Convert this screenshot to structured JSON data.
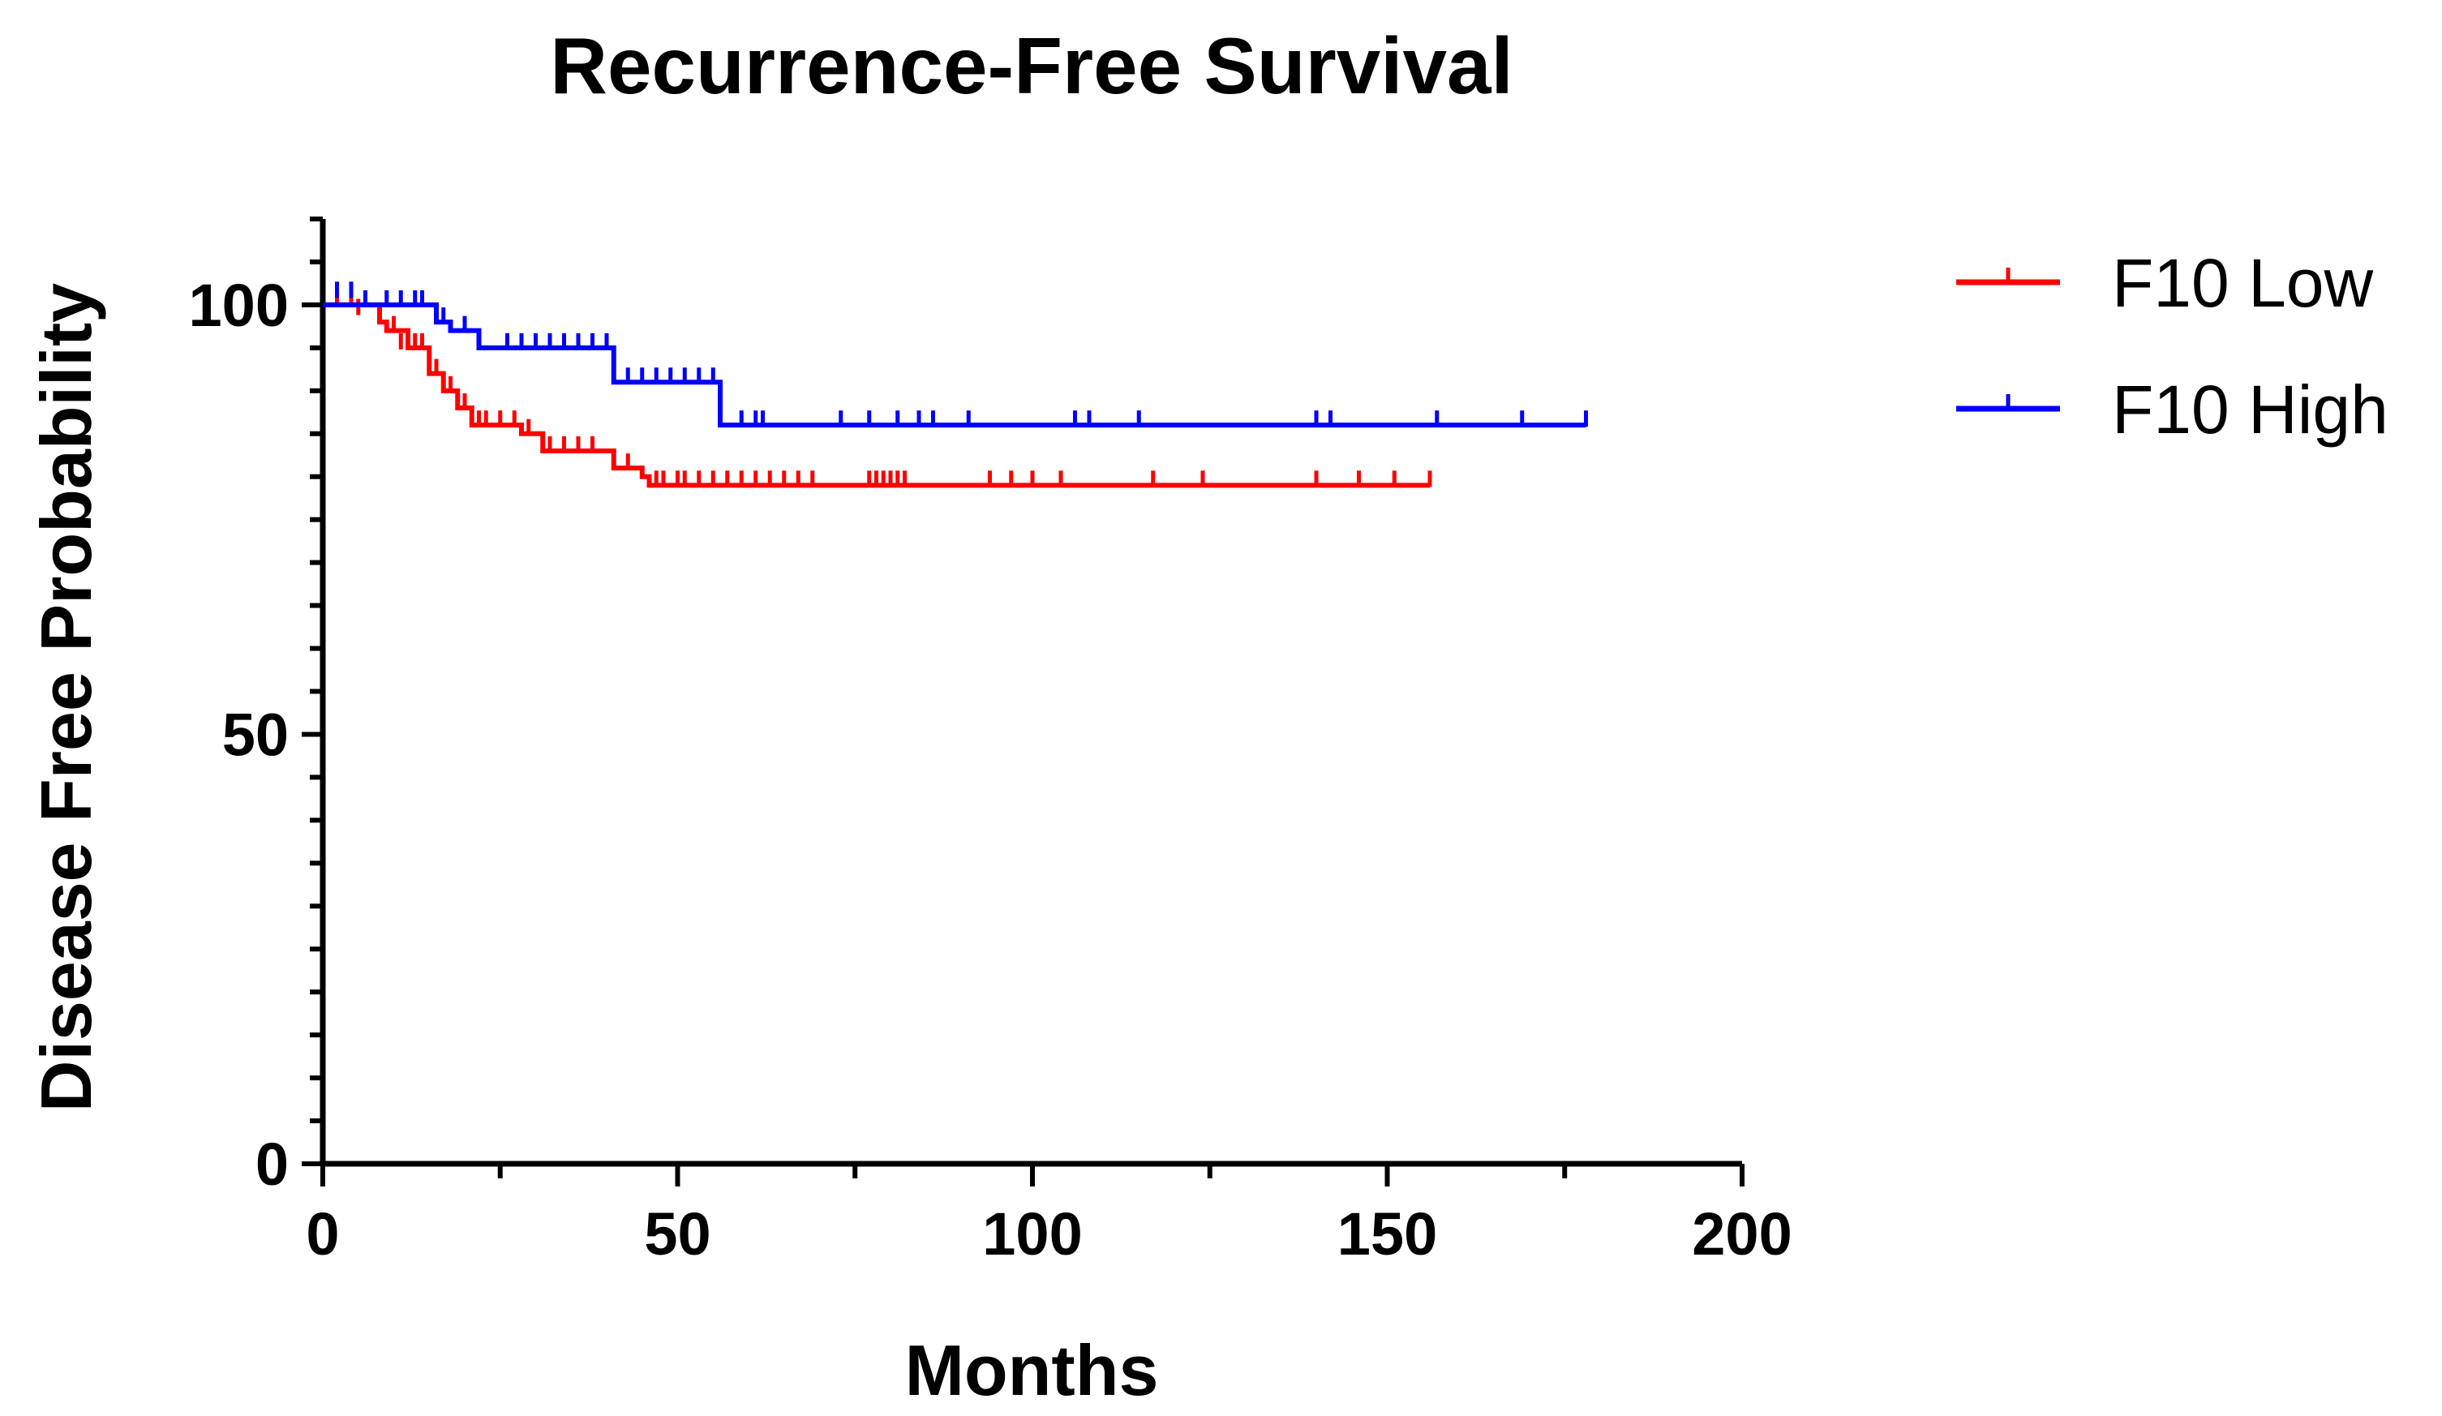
{
  "colors": {
    "low": "#ff0000",
    "high": "#0000ff",
    "axis": "#000000"
  },
  "chart_data": {
    "type": "line",
    "step": true,
    "title": "Recurrence-Free Survival",
    "xlabel": "Months",
    "ylabel": "Disease Free Probability",
    "xlim": [
      0,
      200
    ],
    "ylim": [
      0,
      110
    ],
    "xticks": [
      "0",
      "50",
      "100",
      "150",
      "200"
    ],
    "xtick_values": [
      0,
      50,
      100,
      150,
      200
    ],
    "yticks": [
      "0",
      "50",
      "100"
    ],
    "ytick_values": [
      0,
      50,
      100
    ],
    "grid": false,
    "legend_position": "top-right",
    "series": [
      {
        "name": "F10 Low",
        "color": "#ff0000",
        "steps": [
          [
            0,
            100
          ],
          [
            8,
            98
          ],
          [
            9,
            97
          ],
          [
            12,
            95
          ],
          [
            15,
            92
          ],
          [
            17,
            90
          ],
          [
            19,
            88
          ],
          [
            21,
            86
          ],
          [
            28,
            85
          ],
          [
            31,
            83
          ],
          [
            41,
            81
          ],
          [
            45,
            80
          ],
          [
            46,
            79
          ],
          [
            156,
            79
          ]
        ],
        "censored": [
          [
            2,
            100
          ],
          [
            4,
            100
          ],
          [
            5,
            99
          ],
          [
            10,
            97
          ],
          [
            11,
            95
          ],
          [
            13,
            95
          ],
          [
            14,
            95
          ],
          [
            16,
            92
          ],
          [
            18,
            90
          ],
          [
            20,
            88
          ],
          [
            22,
            86
          ],
          [
            23,
            86
          ],
          [
            25,
            86
          ],
          [
            27,
            86
          ],
          [
            29,
            85
          ],
          [
            32,
            83
          ],
          [
            34,
            83
          ],
          [
            36,
            83
          ],
          [
            38,
            83
          ],
          [
            43,
            81
          ],
          [
            47,
            79
          ],
          [
            48,
            79
          ],
          [
            50,
            79
          ],
          [
            51,
            79
          ],
          [
            53,
            79
          ],
          [
            55,
            79
          ],
          [
            57,
            79
          ],
          [
            59,
            79
          ],
          [
            61,
            79
          ],
          [
            63,
            79
          ],
          [
            65,
            79
          ],
          [
            67,
            79
          ],
          [
            69,
            79
          ],
          [
            77,
            79
          ],
          [
            78,
            79
          ],
          [
            79,
            79
          ],
          [
            80,
            79
          ],
          [
            81,
            79
          ],
          [
            82,
            79
          ],
          [
            94,
            79
          ],
          [
            97,
            79
          ],
          [
            100,
            79
          ],
          [
            104,
            79
          ],
          [
            117,
            79
          ],
          [
            124,
            79
          ],
          [
            140,
            79
          ],
          [
            146,
            79
          ],
          [
            151,
            79
          ],
          [
            156,
            79
          ]
        ]
      },
      {
        "name": "F10 High",
        "color": "#0000ff",
        "steps": [
          [
            0,
            100
          ],
          [
            16,
            98
          ],
          [
            18,
            97
          ],
          [
            22,
            95
          ],
          [
            41,
            91
          ],
          [
            56,
            86
          ],
          [
            178,
            86
          ]
        ],
        "censored": [
          [
            2,
            101
          ],
          [
            4,
            101
          ],
          [
            6,
            100
          ],
          [
            9,
            100
          ],
          [
            11,
            100
          ],
          [
            13,
            100
          ],
          [
            14,
            100
          ],
          [
            17,
            98
          ],
          [
            20,
            97
          ],
          [
            26,
            95
          ],
          [
            28,
            95
          ],
          [
            30,
            95
          ],
          [
            32,
            95
          ],
          [
            34,
            95
          ],
          [
            36,
            95
          ],
          [
            38,
            95
          ],
          [
            40,
            95
          ],
          [
            43,
            91
          ],
          [
            45,
            91
          ],
          [
            47,
            91
          ],
          [
            49,
            91
          ],
          [
            51,
            91
          ],
          [
            53,
            91
          ],
          [
            55,
            91
          ],
          [
            59,
            86
          ],
          [
            61,
            86
          ],
          [
            62,
            86
          ],
          [
            73,
            86
          ],
          [
            77,
            86
          ],
          [
            81,
            86
          ],
          [
            84,
            86
          ],
          [
            86,
            86
          ],
          [
            91,
            86
          ],
          [
            106,
            86
          ],
          [
            108,
            86
          ],
          [
            115,
            86
          ],
          [
            140,
            86
          ],
          [
            142,
            86
          ],
          [
            157,
            86
          ],
          [
            169,
            86
          ],
          [
            178,
            86
          ]
        ]
      }
    ]
  }
}
